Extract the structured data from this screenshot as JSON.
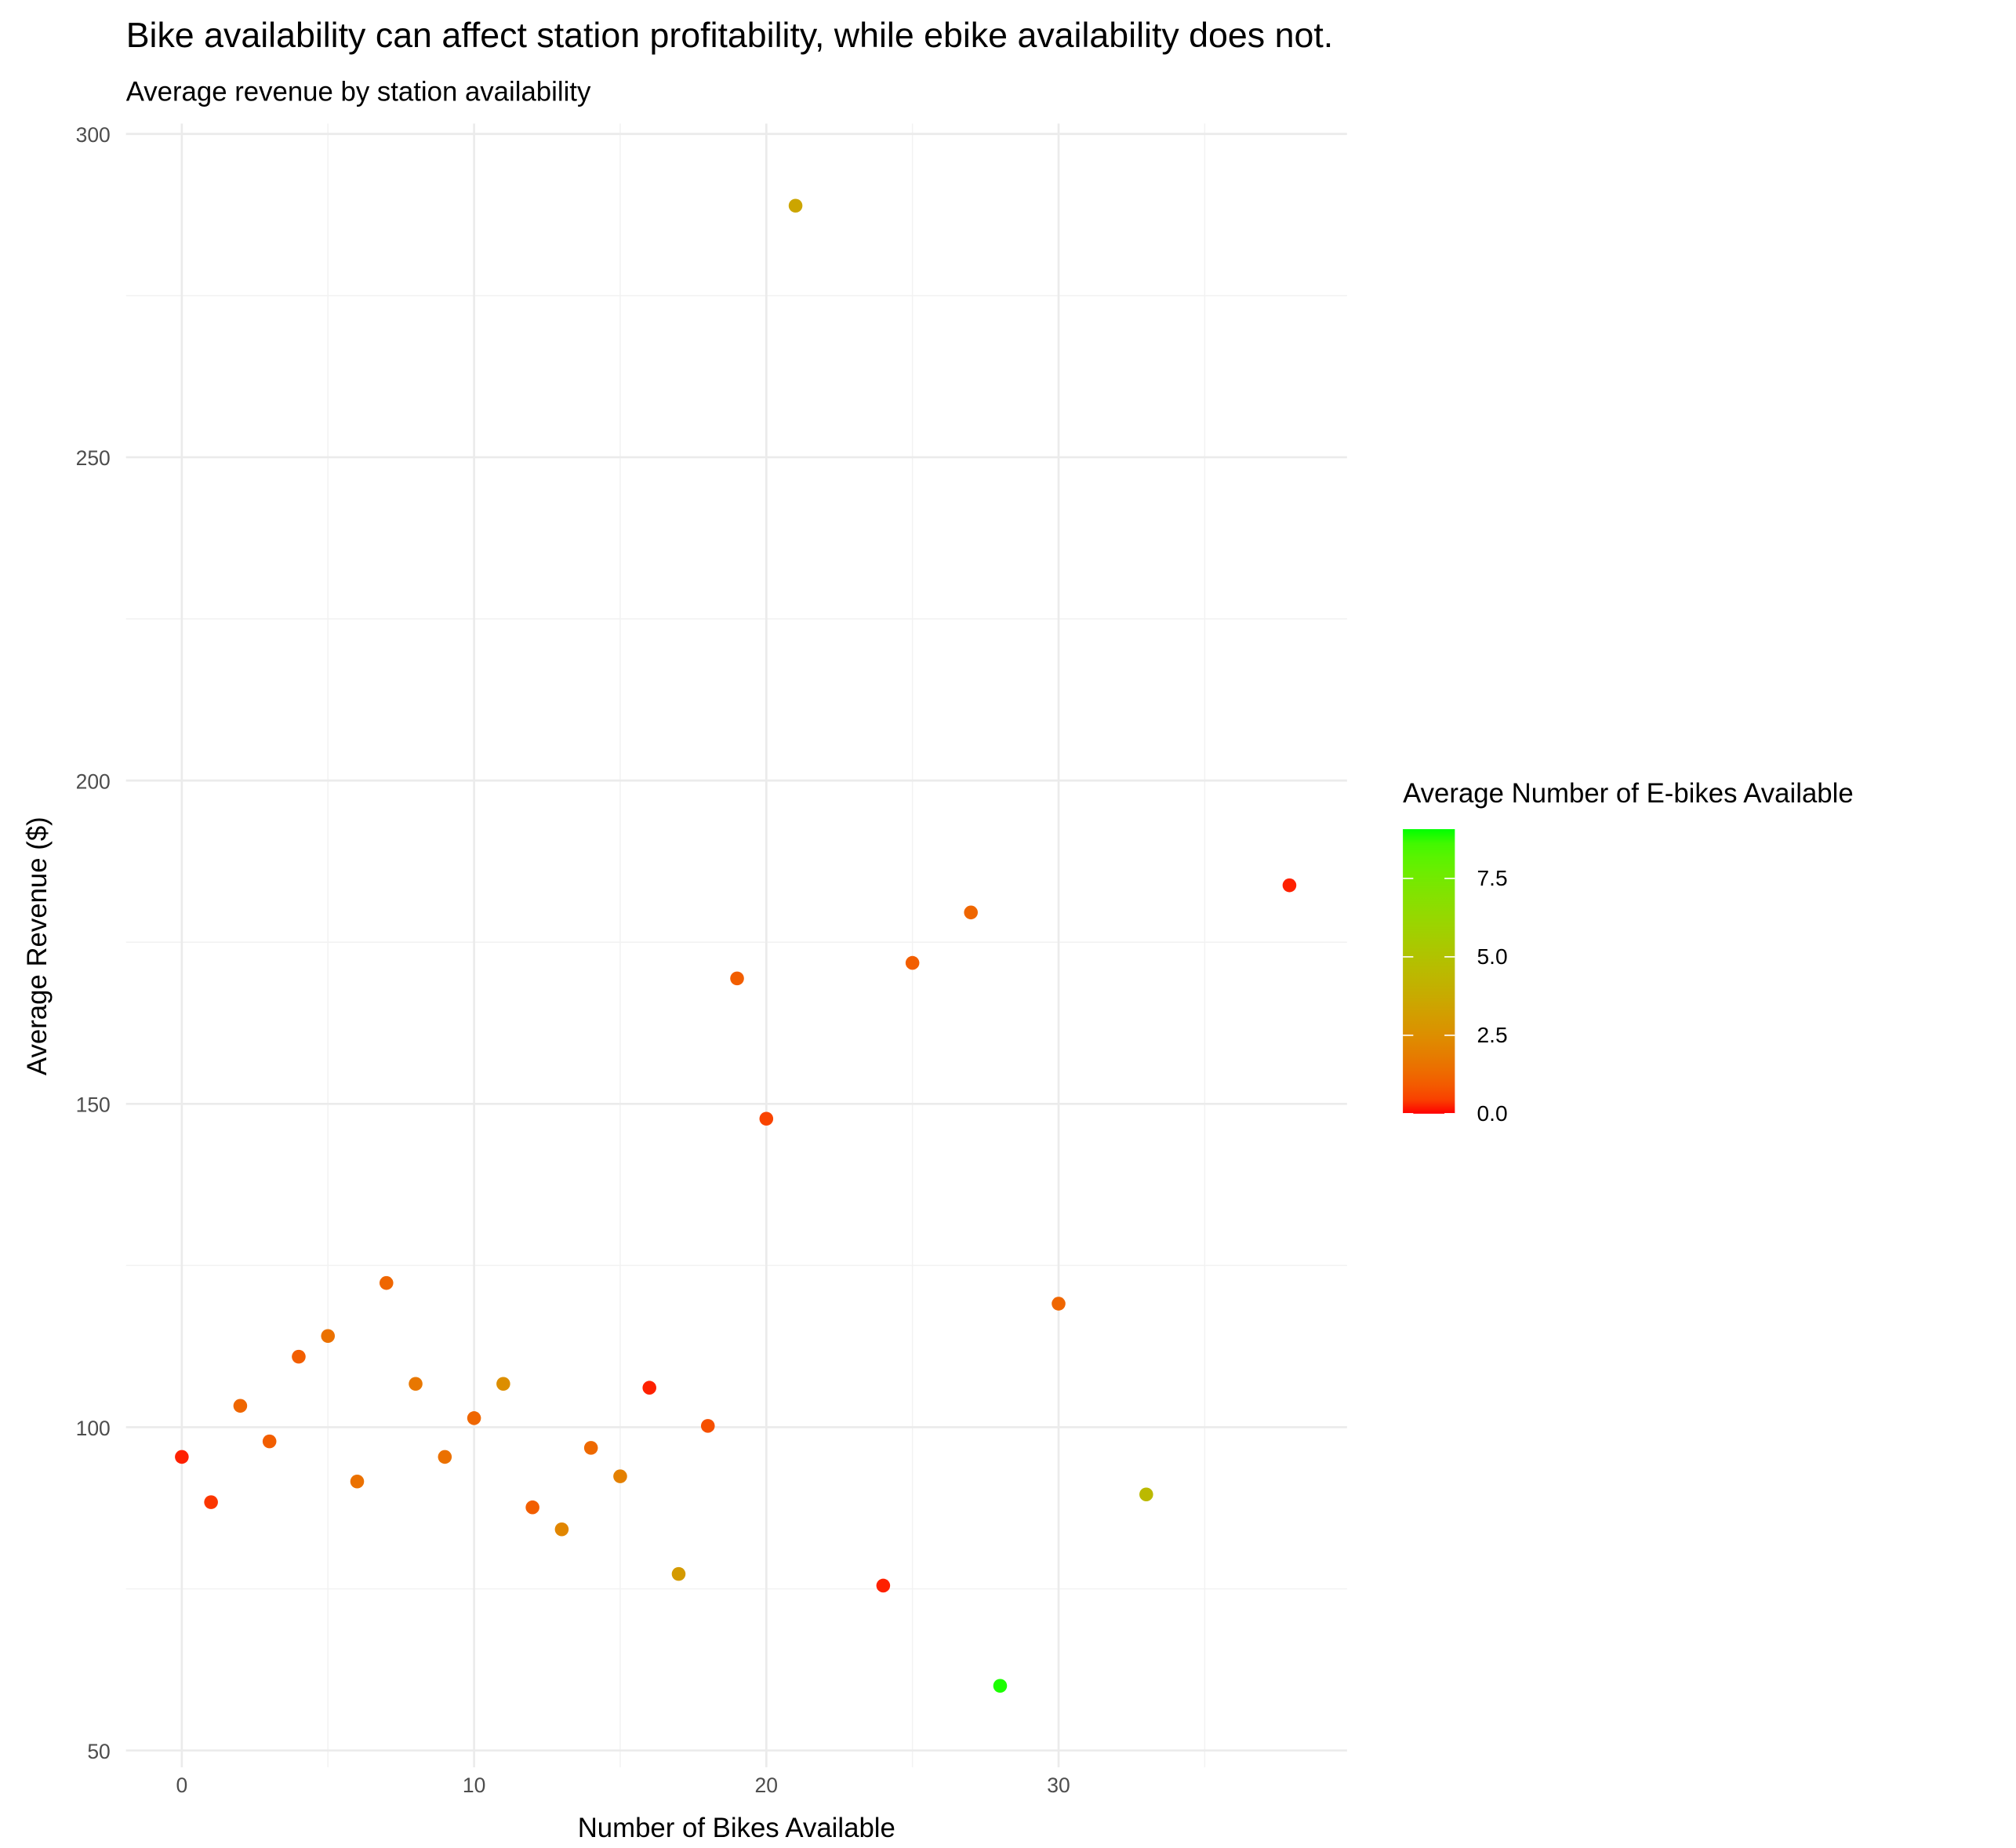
{
  "chart_data": {
    "type": "scatter",
    "title": "Bike availability can affect station profitability, while ebike availability does not.",
    "subtitle": "Average revenue by station availability",
    "x_label": "Number of Bikes Available",
    "y_label": "Average Revenue ($)",
    "x": [
      0,
      1,
      2,
      3,
      4,
      5,
      6,
      7,
      8,
      9,
      10,
      11,
      12,
      13,
      14,
      15,
      16,
      17,
      18,
      19,
      20,
      21,
      24,
      25,
      27,
      28,
      30,
      33,
      37.9
    ],
    "series": [
      {
        "values": [
          95.4,
          88.4,
          103.3,
          97.8,
          110.9,
          114.1,
          91.6,
          122.3,
          106.7,
          95.4,
          101.4,
          106.7,
          87.6,
          84.2,
          96.8,
          92.4,
          106.1,
          77.3,
          100.2,
          169.4,
          147.7,
          288.9,
          75.5,
          171.8,
          179.6,
          60.0,
          119.1,
          89.6,
          183.8
        ],
        "color_values": [
          0.1,
          0.3,
          1.2,
          1.0,
          1.0,
          1.5,
          1.5,
          1.2,
          1.7,
          1.5,
          1.2,
          2.5,
          1.0,
          2.2,
          1.3,
          2.0,
          0.1,
          3.0,
          0.7,
          1.0,
          0.5,
          3.5,
          0.1,
          1.0,
          1.2,
          9.0,
          1.2,
          4.5,
          0.1
        ]
      }
    ],
    "xlim": [
      -1.91,
      39.87
    ],
    "ylim": [
      47.4,
      301.6
    ],
    "xticks": [
      0,
      10,
      20,
      30
    ],
    "yticks": [
      50,
      100,
      150,
      200,
      250,
      300
    ],
    "x_minor_ticks": [
      5,
      15,
      25,
      35
    ],
    "y_minor_ticks": [
      75,
      125,
      175,
      225,
      275
    ],
    "grid": true,
    "color_scale": {
      "title": "Average Number of E-bikes Available",
      "low": "#ff0000",
      "high": "#00ff00",
      "lim": [
        0,
        9.07
      ],
      "ticks": [
        {
          "value": 0,
          "label": "0.0"
        },
        {
          "value": 2.5,
          "label": "2.5"
        },
        {
          "value": 5,
          "label": "5.0"
        },
        {
          "value": 7.5,
          "label": "7.5"
        }
      ]
    }
  }
}
